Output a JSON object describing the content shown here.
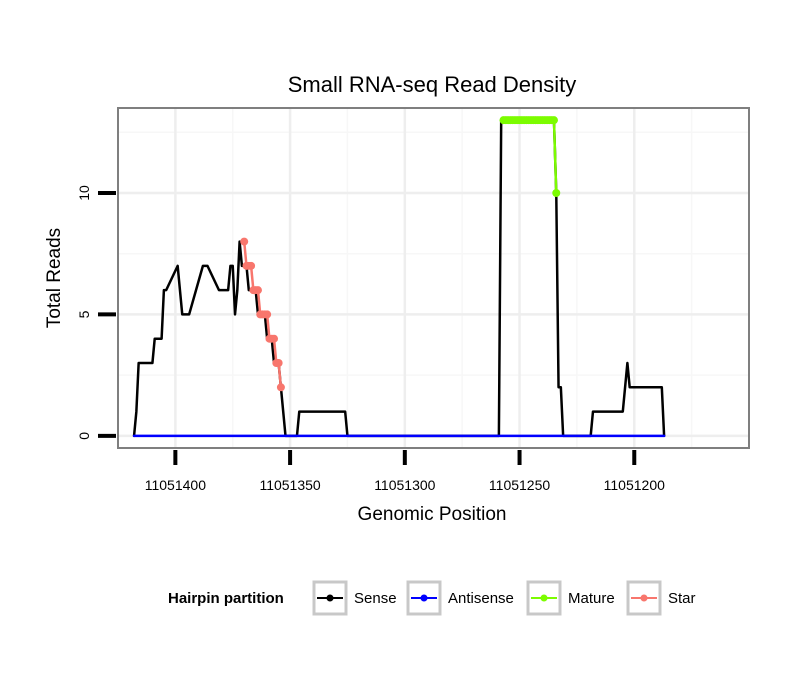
{
  "chart_data": {
    "type": "line",
    "title": "Small RNA-seq Read Density",
    "xlabel": "Genomic Position",
    "ylabel": "Total Reads",
    "xlim": [
      11051425,
      11051150
    ],
    "ylim": [
      -0.5,
      13.5
    ],
    "x_reversed": true,
    "grid": true,
    "x_ticks": [
      11051400,
      11051350,
      11051300,
      11051250,
      11051200
    ],
    "x_tick_labels": [
      "11051400",
      "11051350",
      "11051300",
      "11051250",
      "11051200"
    ],
    "x_minor_ticks": [
      11051375,
      11051325,
      11051275,
      11051225,
      11051175
    ],
    "y_ticks": [
      0,
      5,
      10
    ],
    "y_tick_labels": [
      "0",
      "5",
      "10"
    ],
    "y_minor_ticks": [
      2.5,
      7.5,
      12.5
    ],
    "legend": {
      "title": "Hairpin partition",
      "position": "bottom",
      "entries": [
        {
          "label": "Sense",
          "color": "#000000"
        },
        {
          "label": "Antisense",
          "color": "#0000ff"
        },
        {
          "label": "Mature",
          "color": "#7cfc00"
        },
        {
          "label": "Star",
          "color": "#f8766d"
        }
      ]
    },
    "series": [
      {
        "name": "Sense",
        "color": "#000000",
        "markers": false,
        "x": [
          11051418,
          11051417,
          11051416,
          11051410,
          11051409,
          11051406,
          11051405,
          11051404,
          11051399,
          11051398,
          11051397,
          11051396,
          11051395,
          11051394,
          11051388,
          11051387,
          11051386,
          11051381,
          11051380,
          11051379,
          11051378,
          11051377,
          11051376,
          11051375,
          11051374,
          11051373,
          11051372,
          11051371,
          11051370,
          11051369,
          11051368,
          11051367,
          11051366,
          11051365,
          11051364,
          11051363,
          11051362,
          11051361,
          11051360,
          11051359,
          11051358,
          11051357,
          11051356,
          11051355,
          11051354,
          11051353,
          11051352,
          11051351,
          11051350,
          11051349,
          11051347,
          11051346,
          11051345,
          11051326,
          11051325,
          11051259,
          11051258,
          11051235,
          11051234,
          11051233,
          11051232,
          11051231,
          11051219,
          11051218,
          11051206,
          11051205,
          11051204,
          11051203,
          11051202,
          11051188,
          11051187
        ],
        "y": [
          0,
          1,
          3,
          3,
          4,
          4,
          6,
          6,
          7,
          6,
          5,
          5,
          5,
          5,
          7,
          7,
          7,
          6,
          6,
          6,
          6,
          6,
          7,
          7,
          5,
          6,
          8,
          7,
          7,
          7,
          6,
          6,
          6,
          6,
          5,
          5,
          5,
          5,
          4,
          4,
          4,
          3,
          3,
          3,
          2,
          1,
          0,
          0,
          0,
          0,
          0,
          1,
          1,
          1,
          0,
          0,
          13,
          13,
          10,
          2,
          2,
          0,
          0,
          1,
          1,
          1,
          2,
          3,
          2,
          2,
          0
        ]
      },
      {
        "name": "Antisense",
        "color": "#0000ff",
        "markers": false,
        "x": [
          11051418,
          11051187
        ],
        "y": [
          0,
          0
        ]
      },
      {
        "name": "Mature",
        "color": "#7cfc00",
        "markers": true,
        "x": [
          11051257,
          11051256,
          11051255,
          11051254,
          11051253,
          11051252,
          11051251,
          11051250,
          11051249,
          11051248,
          11051247,
          11051246,
          11051245,
          11051244,
          11051243,
          11051242,
          11051241,
          11051240,
          11051239,
          11051238,
          11051237,
          11051236,
          11051235,
          11051234
        ],
        "y": [
          13,
          13,
          13,
          13,
          13,
          13,
          13,
          13,
          13,
          13,
          13,
          13,
          13,
          13,
          13,
          13,
          13,
          13,
          13,
          13,
          13,
          13,
          13,
          10
        ]
      },
      {
        "name": "Star",
        "color": "#f8766d",
        "markers": true,
        "x": [
          11051370,
          11051369,
          11051368,
          11051367,
          11051366,
          11051365,
          11051364,
          11051363,
          11051362,
          11051361,
          11051360,
          11051359,
          11051358,
          11051357,
          11051356,
          11051355,
          11051354
        ],
        "y": [
          8,
          7,
          7,
          7,
          6,
          6,
          6,
          5,
          5,
          5,
          5,
          4,
          4,
          4,
          3,
          3,
          2
        ]
      }
    ]
  }
}
